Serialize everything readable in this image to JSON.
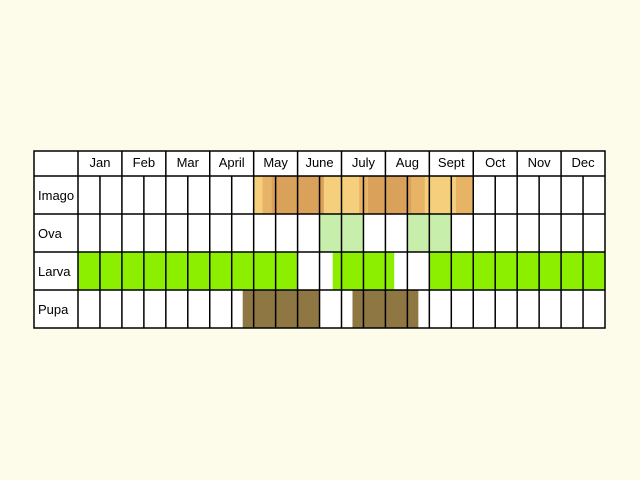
{
  "months": [
    "Jan",
    "Feb",
    "Mar",
    "April",
    "May",
    "June",
    "July",
    "Aug",
    "Sept",
    "Oct",
    "Nov",
    "Dec"
  ],
  "subdivisions_per_month": 2,
  "colors": {
    "background": "#fdfbe9",
    "cell_fill": "#ffffff",
    "grid_line": "#000000",
    "imago_light": "#f5cf7c",
    "imago_mid": "#e7b465",
    "imago_dark": "#d9a15a",
    "ova": "#c7eeaa",
    "larva": "#8cef00",
    "pupa": "#8f7743"
  },
  "stages": [
    {
      "name": "Imago",
      "segments": [
        {
          "start": 4.0,
          "end": 4.2,
          "color": "imago_light"
        },
        {
          "start": 4.2,
          "end": 4.4,
          "color": "imago_mid"
        },
        {
          "start": 4.4,
          "end": 5.6,
          "color": "imago_dark"
        },
        {
          "start": 5.6,
          "end": 6.4,
          "color": "imago_light"
        },
        {
          "start": 6.4,
          "end": 6.6,
          "color": "imago_mid"
        },
        {
          "start": 6.6,
          "end": 7.6,
          "color": "imago_dark"
        },
        {
          "start": 7.6,
          "end": 7.9,
          "color": "imago_mid"
        },
        {
          "start": 7.9,
          "end": 8.6,
          "color": "imago_light"
        },
        {
          "start": 8.6,
          "end": 9.0,
          "color": "imago_mid"
        }
      ]
    },
    {
      "name": "Ova",
      "segments": [
        {
          "start": 5.5,
          "end": 6.5,
          "color": "ova"
        },
        {
          "start": 7.5,
          "end": 8.5,
          "color": "ova"
        }
      ]
    },
    {
      "name": "Larva",
      "segments": [
        {
          "start": 0.0,
          "end": 5.0,
          "color": "larva"
        },
        {
          "start": 5.8,
          "end": 7.2,
          "color": "larva"
        },
        {
          "start": 8.0,
          "end": 12.0,
          "color": "larva"
        }
      ]
    },
    {
      "name": "Pupa",
      "segments": [
        {
          "start": 3.75,
          "end": 5.5,
          "color": "pupa"
        },
        {
          "start": 6.25,
          "end": 7.75,
          "color": "pupa"
        }
      ]
    }
  ]
}
